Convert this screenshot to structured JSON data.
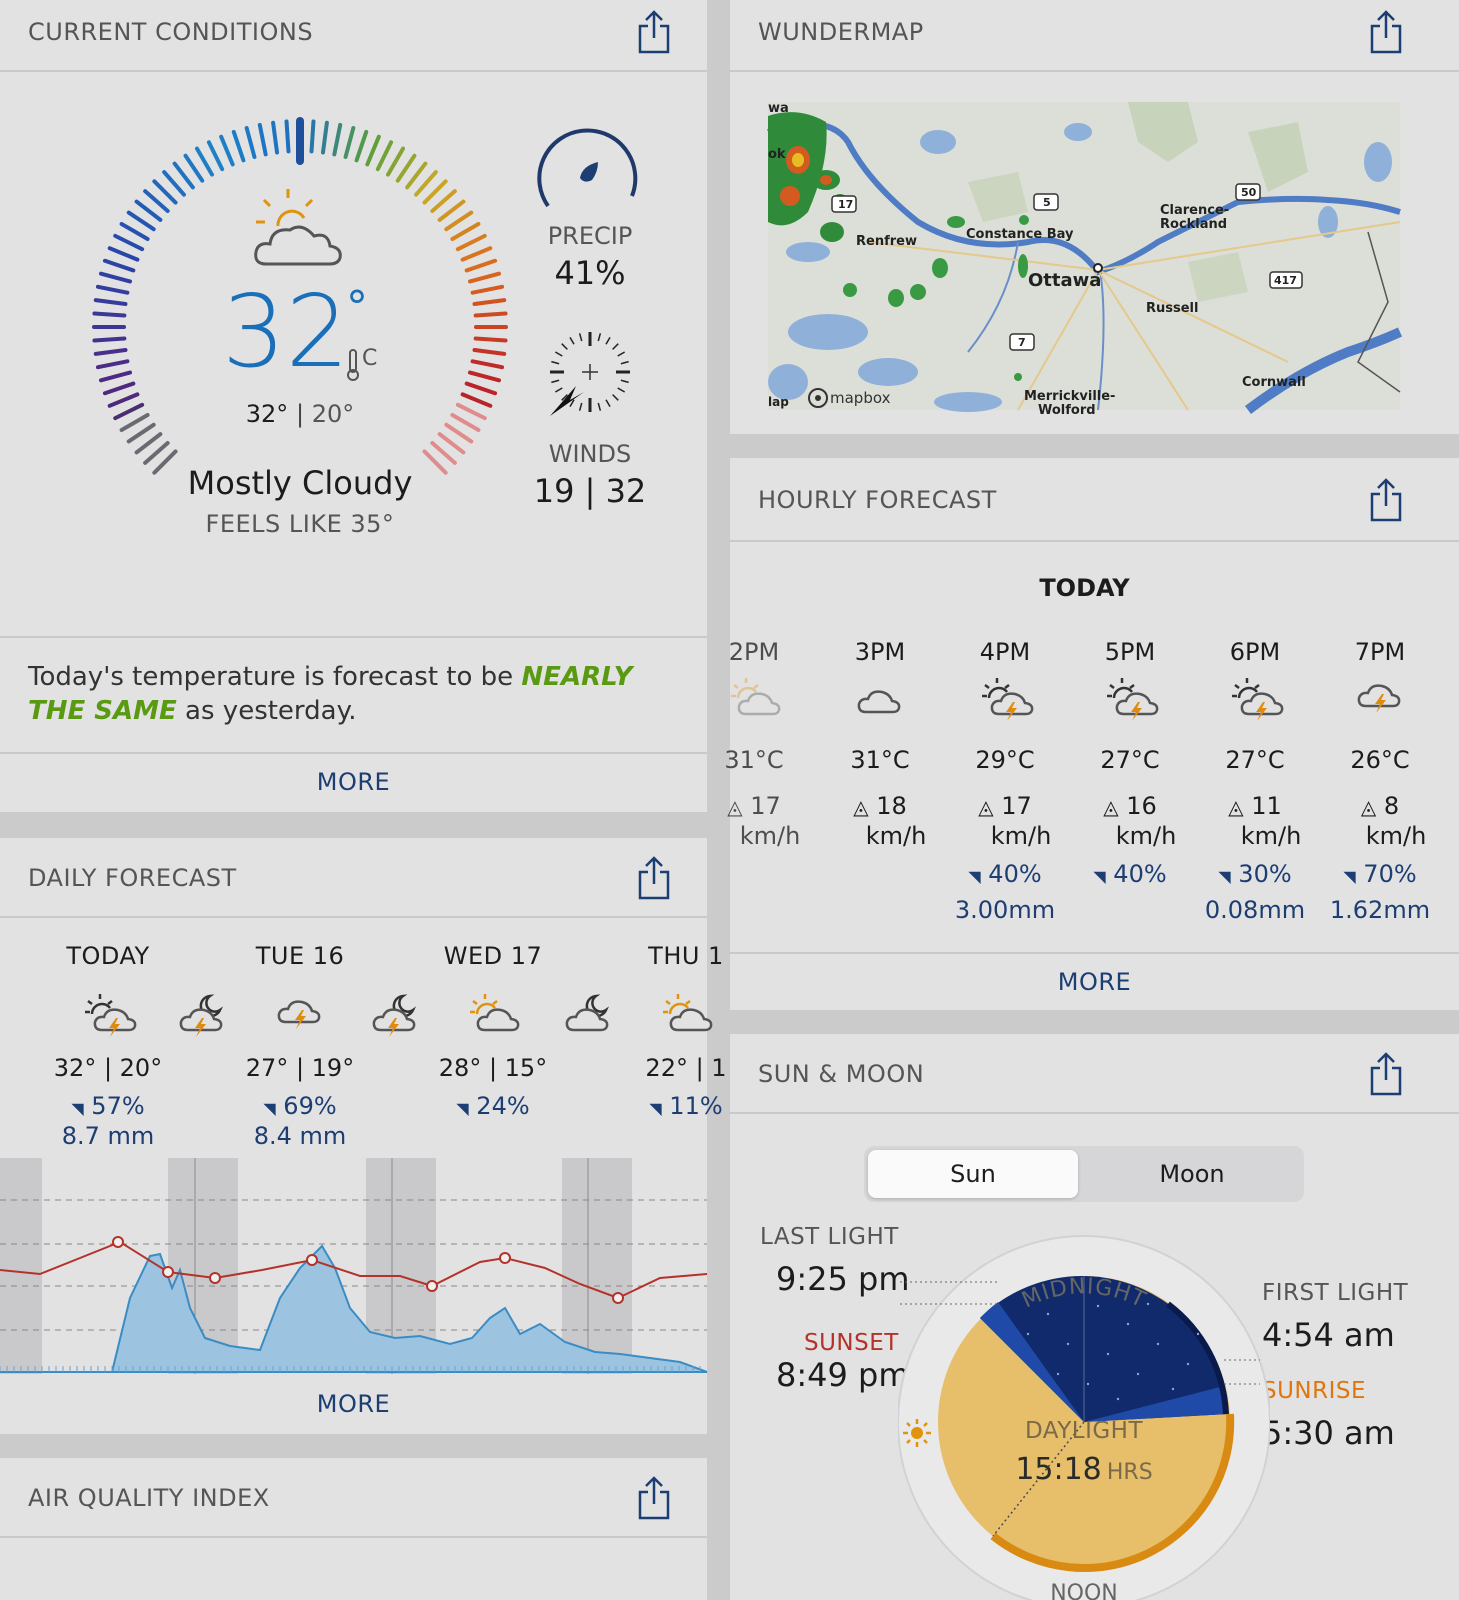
{
  "current": {
    "title": "CURRENT CONDITIONS",
    "temp": "32",
    "deg": "°",
    "unit": "C",
    "hi": "32°",
    "lo": "20°",
    "sep": "|",
    "condition": "Mostly Cloudy",
    "feels_like": "FEELS LIKE 35°",
    "precip_label": "PRECIP",
    "precip_value": "41%",
    "winds_label": "WINDS",
    "winds_value": "19 | 32",
    "message_pre": "Today's temperature is forecast to be ",
    "message_em": "NEARLY THE SAME",
    "message_post": " as yesterday.",
    "more": "MORE"
  },
  "daily": {
    "title": "DAILY FORECAST",
    "days": [
      {
        "name": "TODAY",
        "temps": "32° | 20°",
        "precip": "57%",
        "amount": "8.7 mm",
        "day_icon": "sun-cloud-thunder-icon",
        "night_icon": "moon-cloud-thunder-icon"
      },
      {
        "name": "TUE 16",
        "temps": "27° | 19°",
        "precip": "69%",
        "amount": "8.4 mm",
        "day_icon": "cloud-thunder-icon",
        "night_icon": "moon-cloud-thunder-icon"
      },
      {
        "name": "WED 17",
        "temps": "28° | 15°",
        "precip": "24%",
        "amount": "",
        "day_icon": "partly-cloudy-icon",
        "night_icon": "moon-cloud-icon"
      },
      {
        "name": "THU 1",
        "temps": "22° | 1",
        "precip": "11%",
        "amount": "",
        "day_icon": "partly-cloudy-icon",
        "night_icon": ""
      }
    ],
    "more": "MORE"
  },
  "aqi": {
    "title": "AIR QUALITY INDEX"
  },
  "map": {
    "title": "WUNDERMAP",
    "labels": [
      "wa",
      "ok",
      "Renfrew",
      "Constance Bay",
      "Ottawa",
      "Clarence-\nRockland",
      "Russell",
      "Cornwall",
      "Merrickville-\nWolford",
      "lap"
    ],
    "shields": [
      "17",
      "5",
      "50",
      "417",
      "7"
    ],
    "attribution": "mapbox"
  },
  "hourly": {
    "title": "HOURLY FORECAST",
    "day_label": "TODAY",
    "hours": [
      {
        "time": "2PM",
        "temp": "31°C",
        "wind": "17",
        "wind_unit": "km/h",
        "precip": "",
        "amount": "",
        "icon": "partly-cloudy-icon"
      },
      {
        "time": "3PM",
        "temp": "31°C",
        "wind": "18",
        "wind_unit": "km/h",
        "precip": "",
        "amount": "",
        "icon": "cloud-icon"
      },
      {
        "time": "4PM",
        "temp": "29°C",
        "wind": "17",
        "wind_unit": "km/h",
        "precip": "40%",
        "amount": "3.00mm",
        "icon": "sun-cloud-thunder-icon"
      },
      {
        "time": "5PM",
        "temp": "27°C",
        "wind": "16",
        "wind_unit": "km/h",
        "precip": "40%",
        "amount": "",
        "icon": "sun-cloud-thunder-icon"
      },
      {
        "time": "6PM",
        "temp": "27°C",
        "wind": "11",
        "wind_unit": "km/h",
        "precip": "30%",
        "amount": "0.08mm",
        "icon": "sun-cloud-thunder-icon"
      },
      {
        "time": "7PM",
        "temp": "26°C",
        "wind": "8",
        "wind_unit": "km/h",
        "precip": "70%",
        "amount": "1.62mm",
        "icon": "cloud-thunder-icon"
      }
    ],
    "more": "MORE"
  },
  "sunmoon": {
    "title": "SUN & MOON",
    "tab_sun": "Sun",
    "tab_moon": "Moon",
    "last_light_label": "LAST LIGHT",
    "last_light": "9:25 pm",
    "sunset_label": "SUNSET",
    "sunset": "8:49 pm",
    "first_light_label": "FIRST LIGHT",
    "first_light": "4:54 am",
    "sunrise_label": "SUNRISE",
    "sunrise": "5:30 am",
    "midnight": "MIDNIGHT",
    "noon": "NOON",
    "daylight_label": "DAYLIGHT",
    "daylight_value": "15:18",
    "daylight_unit": "HRS"
  },
  "colors": {
    "accent": "#1d3e72",
    "temp_blue": "#1a6fb8",
    "green_em": "#5a9a12",
    "sunset_red": "#b5322a",
    "sunrise_orange": "#e0760b",
    "night": "#102a6b",
    "daylight": "#e7be6a"
  }
}
